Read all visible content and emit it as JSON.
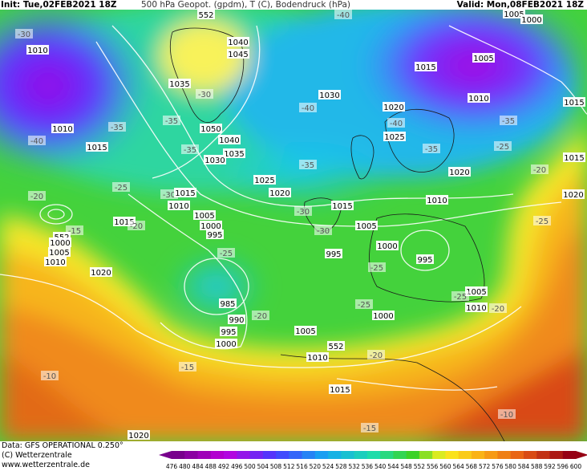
{
  "header": {
    "init": "Init: Tue,02FEB2021 18Z",
    "title": "500 hPa Geopot. (gpdm), T (C), Bodendruck (hPa)",
    "valid": "Valid: Mon,08FEB2021 18Z"
  },
  "map": {
    "labels": [
      "552",
      "1040",
      "1045",
      "1035",
      "1030",
      "1010",
      "-30",
      "-40",
      "1005",
      "1000",
      "1005",
      "1015",
      "1010",
      "1015",
      "-35",
      "1020",
      "-40",
      "1025",
      "-35",
      "-25",
      "1020",
      "1015",
      "-20",
      "1020",
      "-25",
      "1010",
      "-40",
      "-35",
      "1015",
      "-35",
      "1050",
      "1040",
      "-35",
      "1035",
      "1030",
      "-40",
      "-30",
      "-25",
      "-30",
      "-20",
      "1015",
      "1010",
      "1025",
      "1020",
      "-35",
      "1015",
      "-30",
      "1010",
      "1005",
      "1000",
      "995",
      "1015",
      "-30",
      "1005",
      "-15",
      "552",
      "1000",
      "1005",
      "1010",
      "-20",
      "1000",
      "995",
      "-25",
      "995",
      "-25",
      "1020",
      "1005",
      "-25",
      "985",
      "1010",
      "-20",
      "-25",
      "990",
      "-20",
      "1000",
      "1005",
      "995",
      "1000",
      "552",
      "-20",
      "1010",
      "-15",
      "-10",
      "1015",
      "-15",
      "-10",
      "1020"
    ]
  },
  "colorbar": {
    "labels": [
      476,
      480,
      484,
      488,
      492,
      496,
      500,
      504,
      508,
      512,
      516,
      520,
      524,
      528,
      532,
      536,
      540,
      544,
      548,
      552,
      556,
      560,
      564,
      568,
      572,
      576,
      580,
      584,
      588,
      592,
      596,
      600
    ]
  },
  "footer": {
    "data": "Data: GFS OPERATIONAL 0.250°",
    "copyright": "(C) Wetterzentrale",
    "url": "www.wetterzentrale.de"
  }
}
